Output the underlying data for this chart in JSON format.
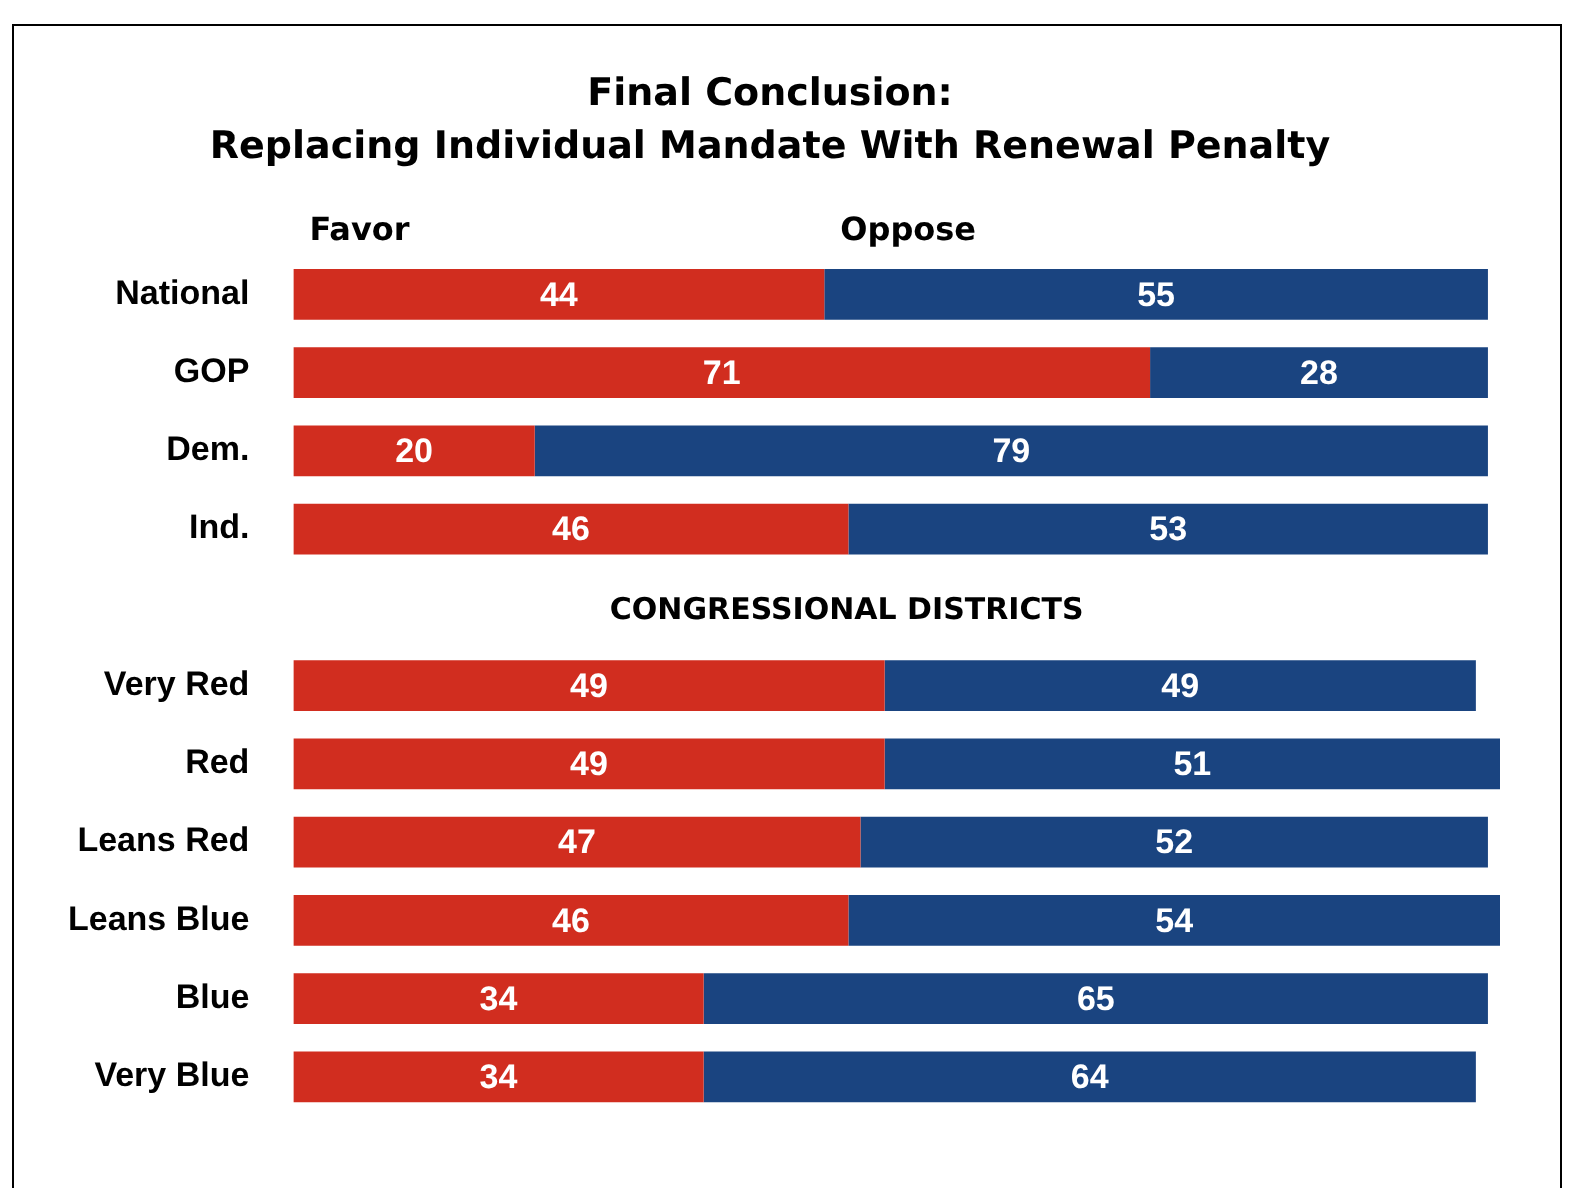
{
  "chart_data": {
    "type": "bar",
    "orientation": "horizontal",
    "stacked": true,
    "title": "Final Conclusion:",
    "subtitle": "Replacing Individual Mandate With Renewal Penalty",
    "categories": [
      "National",
      "GOP",
      "Dem.",
      "Ind.",
      null,
      "Very Red",
      "Red",
      "Leans Red",
      "Leans Blue",
      "Blue",
      "Very Blue"
    ],
    "series": [
      {
        "name": "Favor",
        "color": "#d12d1f",
        "values": [
          44,
          71,
          20,
          46,
          null,
          49,
          49,
          47,
          46,
          34,
          34
        ]
      },
      {
        "name": "Oppose",
        "color": "#1a4480",
        "values": [
          55,
          28,
          79,
          53,
          null,
          49,
          51,
          52,
          54,
          65,
          64
        ]
      }
    ],
    "annotations": [
      "CONGRESSIONAL DISTRICTS"
    ],
    "data_labels": true,
    "legend": "top",
    "tick_labels": "y",
    "grid": false
  }
}
